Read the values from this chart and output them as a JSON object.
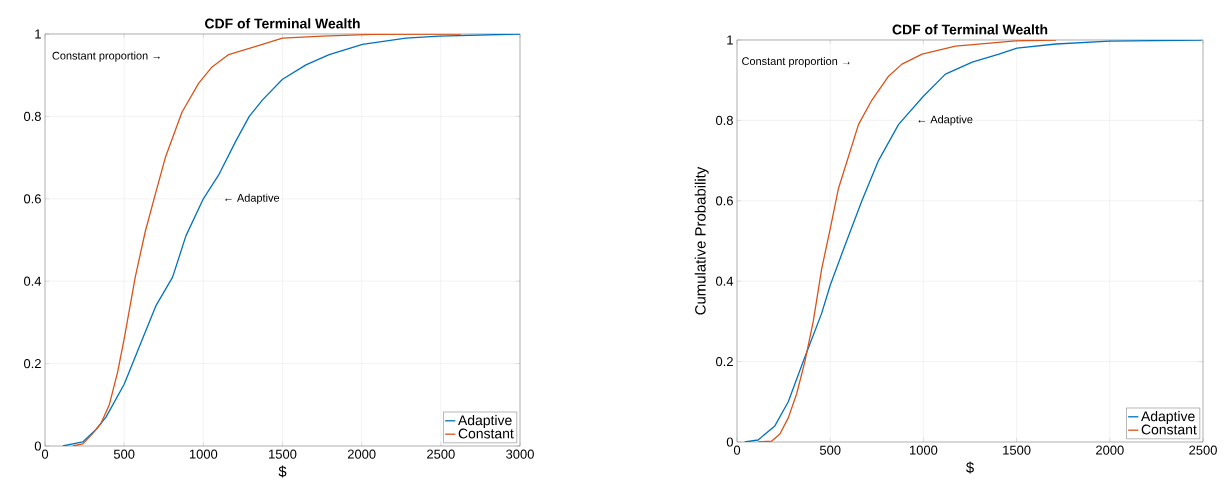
{
  "chart_data": [
    {
      "type": "line",
      "title": "CDF of Terminal Wealth",
      "xlabel": "$",
      "xlim": [
        0,
        3000
      ],
      "ylim": [
        0,
        1
      ],
      "xticks": [
        0,
        500,
        1000,
        1500,
        2000,
        2500,
        3000
      ],
      "yticks": [
        0,
        0.2,
        0.4,
        0.6,
        0.8,
        1
      ],
      "grid": true,
      "legend": "bottom right",
      "annotations": [
        "Constant proportion →",
        "← Adaptive"
      ],
      "series": [
        {
          "name": "Adaptive",
          "color": "#0072bd",
          "x": [
            112,
            238,
            322,
            385,
            500,
            595,
            700,
            806,
            890,
            1000,
            1100,
            1205,
            1290,
            1374,
            1500,
            1648,
            1795,
            2005,
            2279,
            2489,
            3000
          ],
          "values": [
            0,
            0.01,
            0.04,
            0.07,
            0.15,
            0.24,
            0.34,
            0.41,
            0.51,
            0.6,
            0.66,
            0.74,
            0.8,
            0.84,
            0.89,
            0.925,
            0.95,
            0.975,
            0.99,
            0.995,
            1
          ]
        },
        {
          "name": "Constant",
          "color": "#d95319",
          "x": [
            175,
            238,
            301,
            354,
            406,
            459,
            500,
            570,
            633,
            696,
            760,
            865,
            970,
            1055,
            1160,
            1332,
            1500,
            1752,
            2068,
            2626
          ],
          "values": [
            0,
            0.005,
            0.03,
            0.055,
            0.1,
            0.18,
            0.26,
            0.41,
            0.52,
            0.61,
            0.7,
            0.81,
            0.88,
            0.92,
            0.95,
            0.97,
            0.99,
            0.995,
            0.999,
            1
          ]
        }
      ]
    },
    {
      "type": "line",
      "title": "CDF of Terminal Wealth",
      "xlabel": "$",
      "ylabel": "Cumulative Probability",
      "xlim": [
        0,
        2500
      ],
      "ylim": [
        0,
        1
      ],
      "xticks": [
        0,
        500,
        1000,
        1500,
        2000,
        2500
      ],
      "yticks": [
        0,
        0.2,
        0.4,
        0.6,
        0.8,
        1
      ],
      "grid": true,
      "legend": "bottom right",
      "annotations": [
        "Constant proportion →",
        "← Adaptive"
      ],
      "series": [
        {
          "name": "Adaptive",
          "color": "#0072bd",
          "x": [
            41,
            113,
            203,
            275,
            355,
            454,
            500,
            580,
            670,
            759,
            867,
            1000,
            1118,
            1262,
            1405,
            1502,
            1711,
            1998,
            2492
          ],
          "values": [
            0,
            0.005,
            0.04,
            0.1,
            0.2,
            0.32,
            0.39,
            0.49,
            0.6,
            0.7,
            0.79,
            0.86,
            0.915,
            0.945,
            0.965,
            0.98,
            0.99,
            0.997,
            1
          ]
        },
        {
          "name": "Constant",
          "color": "#d95319",
          "x": [
            113,
            185,
            230,
            275,
            320,
            364,
            409,
            454,
            500,
            544,
            598,
            652,
            723,
            813,
            885,
            993,
            1172,
            1495,
            1711
          ],
          "values": [
            0,
            0.002,
            0.02,
            0.06,
            0.12,
            0.2,
            0.3,
            0.43,
            0.53,
            0.63,
            0.71,
            0.79,
            0.85,
            0.91,
            0.94,
            0.965,
            0.985,
            0.998,
            1
          ]
        }
      ]
    }
  ]
}
